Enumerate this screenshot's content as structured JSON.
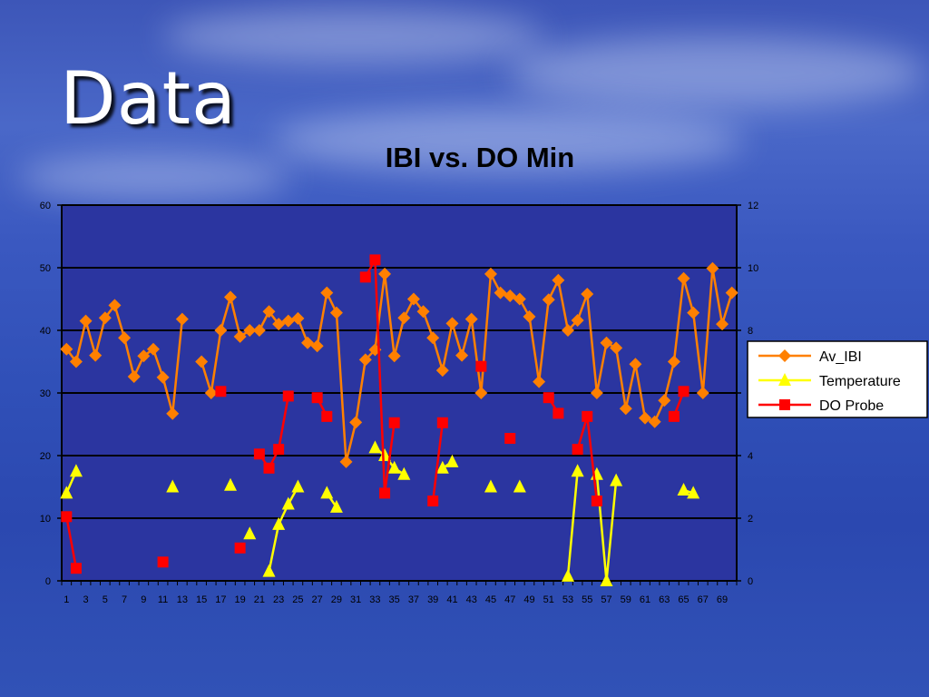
{
  "slide": {
    "title": "Data"
  },
  "chart_data": {
    "type": "line",
    "title": "IBI vs. DO Min",
    "x": [
      1,
      2,
      3,
      4,
      5,
      6,
      7,
      8,
      9,
      10,
      11,
      12,
      13,
      14,
      15,
      16,
      17,
      18,
      19,
      20,
      21,
      22,
      23,
      24,
      25,
      26,
      27,
      28,
      29,
      30,
      31,
      32,
      33,
      34,
      35,
      36,
      37,
      38,
      39,
      40,
      41,
      42,
      43,
      44,
      45,
      46,
      47,
      48,
      49,
      50,
      51,
      52,
      53,
      54,
      55,
      56,
      57,
      58,
      59,
      60,
      61,
      62,
      63,
      64,
      65,
      66,
      67,
      68,
      69,
      70
    ],
    "x_tick_labels": [
      "1",
      "3",
      "5",
      "7",
      "9",
      "11",
      "13",
      "15",
      "17",
      "19",
      "21",
      "23",
      "25",
      "27",
      "29",
      "31",
      "33",
      "35",
      "37",
      "39",
      "41",
      "43",
      "45",
      "47",
      "49",
      "51",
      "53",
      "55",
      "57",
      "59",
      "61",
      "63",
      "65",
      "67",
      "69"
    ],
    "y_left": {
      "range": [
        0,
        60
      ],
      "ticks": [
        0,
        10,
        20,
        30,
        40,
        50,
        60
      ]
    },
    "y_right": {
      "range": [
        0,
        12
      ],
      "ticks": [
        0,
        2,
        4,
        6,
        8,
        10,
        12
      ]
    },
    "grid": true,
    "legend": {
      "position": "right"
    },
    "series": [
      {
        "name": "Av_IBI",
        "axis": "left",
        "color": "#ff8000",
        "marker": "diamond",
        "values": [
          37,
          35,
          41.5,
          36,
          42,
          44,
          38.8,
          32.6,
          35.9,
          37,
          32.5,
          26.7,
          41.8,
          null,
          35,
          30,
          40,
          45.3,
          39,
          40,
          40,
          43,
          41,
          41.5,
          41.9,
          38,
          37.5,
          46,
          42.8,
          19,
          25.3,
          35.3,
          36.9,
          49,
          35.9,
          42,
          45,
          43,
          38.8,
          33.6,
          41.1,
          36,
          41.8,
          30,
          49,
          46,
          45.5,
          45,
          42.2,
          31.8,
          44.9,
          48,
          40,
          41.6,
          45.8,
          30,
          38,
          37.2,
          27.5,
          34.6,
          26,
          25.4,
          28.8,
          35,
          48.3,
          42.8,
          30,
          49.9,
          41,
          46
        ]
      },
      {
        "name": "Temperature",
        "axis": "right",
        "color": "#ffff00",
        "marker": "triangle",
        "values": [
          2.8,
          3.5,
          null,
          null,
          null,
          null,
          null,
          null,
          null,
          null,
          null,
          3,
          null,
          null,
          null,
          null,
          null,
          3.05,
          null,
          1.5,
          null,
          0.3,
          1.8,
          2.45,
          3,
          null,
          null,
          2.8,
          2.35,
          null,
          null,
          null,
          4.25,
          4,
          3.6,
          3.4,
          null,
          null,
          null,
          3.6,
          3.8,
          null,
          null,
          null,
          3,
          null,
          null,
          3,
          null,
          null,
          null,
          null,
          0.15,
          3.5,
          null,
          3.4,
          0,
          3.2,
          null,
          null,
          null,
          null,
          null,
          null,
          2.9,
          2.8,
          null,
          null,
          null,
          null
        ]
      },
      {
        "name": "DO Probe",
        "axis": "right",
        "color": "#ff0000",
        "marker": "square",
        "values": [
          2.05,
          0.4,
          null,
          null,
          null,
          null,
          null,
          null,
          null,
          null,
          0.6,
          null,
          null,
          null,
          null,
          null,
          6.05,
          null,
          1.05,
          null,
          4.05,
          3.6,
          4.2,
          5.9,
          null,
          null,
          5.85,
          5.25,
          null,
          null,
          null,
          9.7,
          10.25,
          2.8,
          5.05,
          null,
          null,
          null,
          2.55,
          5.05,
          null,
          null,
          null,
          6.85,
          null,
          null,
          4.55,
          null,
          null,
          null,
          5.85,
          5.35,
          null,
          4.2,
          5.25,
          2.55,
          null,
          null,
          null,
          null,
          null,
          null,
          null,
          5.25,
          6.05,
          null,
          null,
          null,
          null,
          null
        ]
      }
    ]
  }
}
